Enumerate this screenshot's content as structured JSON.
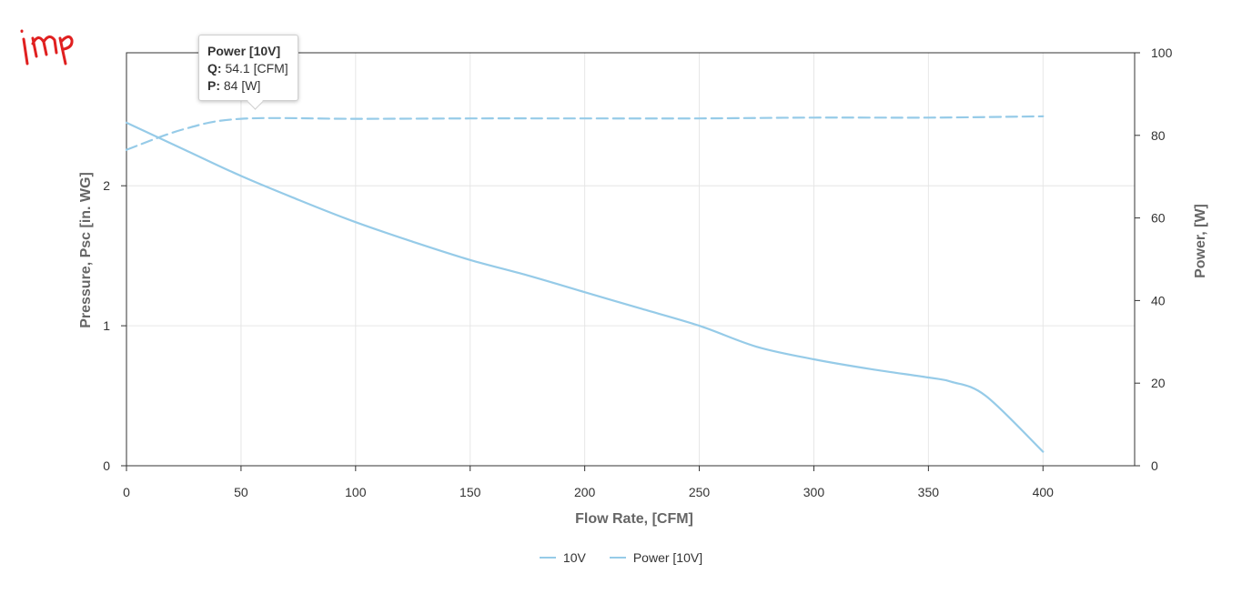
{
  "logo": {
    "text": "imp",
    "color": "#e02020"
  },
  "colors": {
    "series": "#96cbe8",
    "grid": "#e6e6e6",
    "axis": "#333333"
  },
  "tooltip": {
    "title": "Power [10V]",
    "q_key": "Q:",
    "q_value": "54.1 [CFM]",
    "p_key": "P:",
    "p_value": "84 [W]"
  },
  "legend": {
    "items": [
      "10V",
      "Power [10V]"
    ]
  },
  "chart_data": {
    "type": "line",
    "xlabel": "Flow Rate, [CFM]",
    "ylabel": "Pressure, Psc [in. WG]",
    "y2label": "Power, [W]",
    "xlim": [
      0,
      440
    ],
    "ylim": [
      0,
      2.95
    ],
    "y2lim": [
      0,
      100
    ],
    "x_ticks": [
      0,
      50,
      100,
      150,
      200,
      250,
      300,
      350,
      400
    ],
    "y_ticks": [
      0,
      1,
      2
    ],
    "y2_ticks": [
      0,
      20,
      40,
      60,
      80,
      100
    ],
    "grid": true,
    "legend_position": "bottom-center",
    "series": [
      {
        "name": "10V",
        "axis": "left",
        "style": "solid",
        "x": [
          0,
          25,
          50,
          75,
          100,
          125,
          150,
          175,
          200,
          225,
          250,
          275,
          300,
          325,
          350,
          360,
          375,
          400
        ],
        "y": [
          2.45,
          2.26,
          2.07,
          1.9,
          1.74,
          1.6,
          1.47,
          1.36,
          1.24,
          1.12,
          1.0,
          0.85,
          0.76,
          0.69,
          0.63,
          0.6,
          0.5,
          0.1
        ]
      },
      {
        "name": "Power [10V]",
        "axis": "right",
        "style": "dashed",
        "x": [
          0,
          25,
          50,
          100,
          150,
          200,
          250,
          300,
          350,
          400
        ],
        "y": [
          76.5,
          81.5,
          84,
          84,
          84.1,
          84.1,
          84.1,
          84.3,
          84.3,
          84.6
        ]
      }
    ]
  }
}
